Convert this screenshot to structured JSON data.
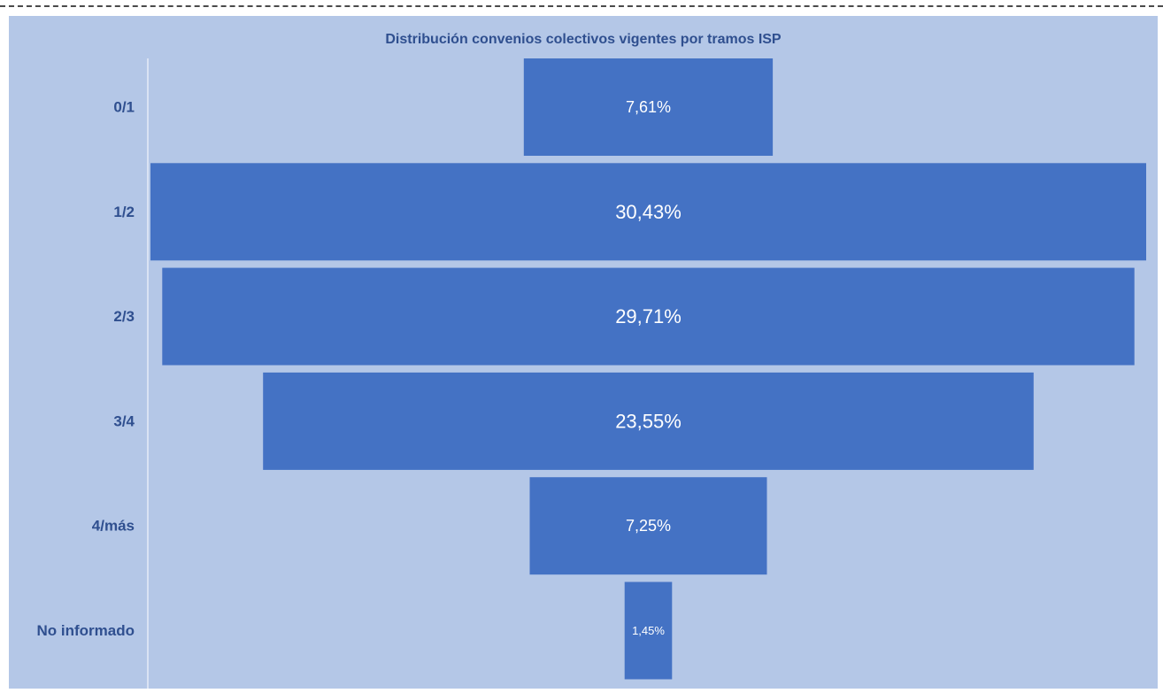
{
  "chart_data": {
    "type": "bar",
    "subtype": "funnel",
    "title": "Distribución convenios colectivos vigentes por tramos ISP",
    "categories": [
      "0/1",
      "1/2",
      "2/3",
      "3/4",
      "4/más",
      "No informado"
    ],
    "values": [
      7.61,
      30.43,
      29.71,
      23.55,
      7.25,
      1.45
    ],
    "value_labels": [
      "7,61%",
      "30,43%",
      "29,71%",
      "23,55%",
      "7,25%",
      "1,45%"
    ],
    "unit": "%",
    "bar_color": "#4472c4",
    "background_color": "#b4c7e7",
    "text_color": "#2f4f8f",
    "grid": false,
    "legend": "none"
  }
}
